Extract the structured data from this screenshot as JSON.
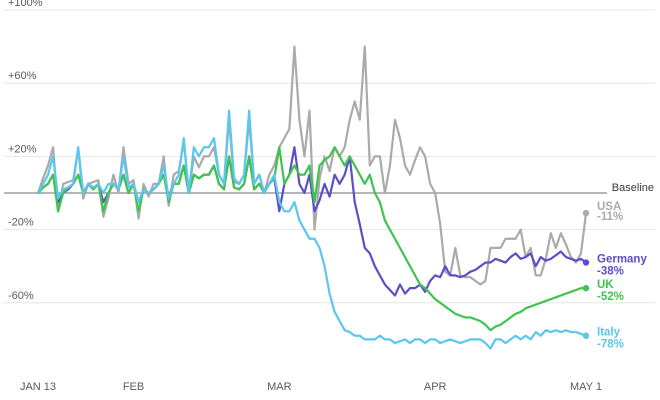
{
  "chart_data": {
    "type": "line",
    "title": "",
    "xlabel": "",
    "ylabel": "",
    "x_ticks": [
      {
        "label": "JAN 13",
        "day": 0
      },
      {
        "label": "FEB",
        "day": 19
      },
      {
        "label": "MAR",
        "day": 48
      },
      {
        "label": "APR",
        "day": 79
      },
      {
        "label": "MAY 1",
        "day": 109
      }
    ],
    "y_ticks": [
      {
        "label": "+100%",
        "value": 100
      },
      {
        "label": "+60%",
        "value": 60
      },
      {
        "label": "+20%",
        "value": 20
      },
      {
        "label": "-20%",
        "value": -20
      },
      {
        "label": "-60%",
        "value": -60
      }
    ],
    "ylim": [
      -100,
      100
    ],
    "xlim": [
      0,
      109
    ],
    "grid": true,
    "baseline": {
      "label": "Baseline",
      "value": 0
    },
    "series": [
      {
        "name": "USA",
        "end_label": "-11%",
        "color": "#aaaaaa",
        "values": [
          0,
          8,
          15,
          25,
          -10,
          5,
          6,
          7,
          24,
          -3,
          5,
          6,
          7,
          -13,
          -3,
          10,
          0,
          25,
          5,
          7,
          -14,
          5,
          -2,
          5,
          5,
          20,
          -7,
          10,
          12,
          28,
          0,
          20,
          14,
          20,
          20,
          25,
          10,
          5,
          40,
          6,
          5,
          10,
          40,
          5,
          10,
          0,
          10,
          15,
          25,
          30,
          35,
          80,
          40,
          20,
          45,
          -20,
          8,
          20,
          12,
          25,
          20,
          25,
          40,
          50,
          40,
          80,
          15,
          20,
          20,
          0,
          15,
          40,
          30,
          15,
          10,
          18,
          25,
          20,
          5,
          0,
          -17,
          -43,
          -45,
          -30,
          -45,
          -46,
          -46,
          -48,
          -50,
          -48,
          -30,
          -30,
          -30,
          -25,
          -25,
          -25,
          -20,
          -35,
          -30,
          -45,
          -45,
          -36,
          -22,
          -30,
          -22,
          -28,
          -35,
          -38,
          -33,
          -11
        ]
      },
      {
        "name": "Germany",
        "end_label": "-38%",
        "color": "#5b4fc9",
        "values": [
          0,
          3,
          5,
          10,
          -5,
          0,
          2,
          5,
          10,
          0,
          5,
          2,
          5,
          -5,
          0,
          5,
          2,
          10,
          0,
          5,
          -5,
          2,
          0,
          2,
          5,
          10,
          -2,
          5,
          5,
          15,
          0,
          10,
          8,
          10,
          10,
          15,
          5,
          2,
          20,
          3,
          2,
          5,
          20,
          2,
          5,
          0,
          5,
          8,
          -10,
          5,
          10,
          25,
          5,
          0,
          10,
          -10,
          -4,
          5,
          -2,
          10,
          5,
          10,
          20,
          -5,
          -17,
          -30,
          -33,
          -40,
          -45,
          -50,
          -53,
          -56,
          -50,
          -55,
          -52,
          -52,
          -50,
          -54,
          -48,
          -45,
          -46,
          -40,
          -45,
          -45,
          -46,
          -45,
          -43,
          -42,
          -40,
          -38,
          -38,
          -36,
          -37,
          -38,
          -35,
          -33,
          -36,
          -35,
          -33,
          -40,
          -35,
          -37,
          -36,
          -34,
          -32,
          -35,
          -36,
          -37,
          -36,
          -38
        ]
      },
      {
        "name": "UK",
        "end_label": "-52%",
        "color": "#3ec44e",
        "values": [
          0,
          3,
          5,
          10,
          -10,
          0,
          3,
          5,
          10,
          0,
          5,
          2,
          5,
          -10,
          0,
          5,
          2,
          10,
          0,
          5,
          -10,
          2,
          0,
          2,
          5,
          10,
          -5,
          5,
          5,
          15,
          0,
          10,
          8,
          10,
          10,
          15,
          5,
          2,
          20,
          3,
          2,
          5,
          20,
          2,
          5,
          0,
          5,
          8,
          25,
          5,
          10,
          15,
          10,
          10,
          15,
          -5,
          15,
          18,
          20,
          25,
          20,
          15,
          20,
          15,
          10,
          5,
          10,
          0,
          -5,
          -15,
          -20,
          -25,
          -30,
          -35,
          -40,
          -45,
          -50,
          -52,
          -55,
          -58,
          -60,
          -62,
          -64,
          -66,
          -67,
          -68,
          -68,
          -69,
          -70,
          -72,
          -75,
          -73,
          -72,
          -70,
          -68,
          -66,
          -65,
          -63,
          -62,
          -61,
          -60,
          -59,
          -58,
          -57,
          -56,
          -55,
          -54,
          -53,
          -52,
          -52
        ]
      },
      {
        "name": "Italy",
        "end_label": "-78%",
        "color": "#5bc6ee",
        "values": [
          0,
          5,
          10,
          20,
          -3,
          2,
          3,
          5,
          25,
          0,
          5,
          3,
          5,
          0,
          5,
          5,
          2,
          20,
          3,
          5,
          -5,
          2,
          0,
          2,
          5,
          15,
          -3,
          5,
          10,
          30,
          0,
          25,
          20,
          25,
          25,
          30,
          10,
          5,
          45,
          8,
          5,
          10,
          45,
          5,
          10,
          0,
          5,
          10,
          -5,
          -10,
          -10,
          -5,
          -15,
          -20,
          -25,
          -25,
          -30,
          -40,
          -55,
          -65,
          -70,
          -75,
          -76,
          -78,
          -78,
          -80,
          -80,
          -80,
          -78,
          -80,
          -80,
          -82,
          -81,
          -80,
          -82,
          -80,
          -80,
          -82,
          -80,
          -80,
          -82,
          -81,
          -80,
          -81,
          -82,
          -81,
          -80,
          -80,
          -80,
          -82,
          -85,
          -80,
          -80,
          -82,
          -80,
          -78,
          -80,
          -78,
          -80,
          -76,
          -78,
          -75,
          -76,
          -75,
          -76,
          -75,
          -76,
          -76,
          -77,
          -78
        ]
      }
    ]
  }
}
